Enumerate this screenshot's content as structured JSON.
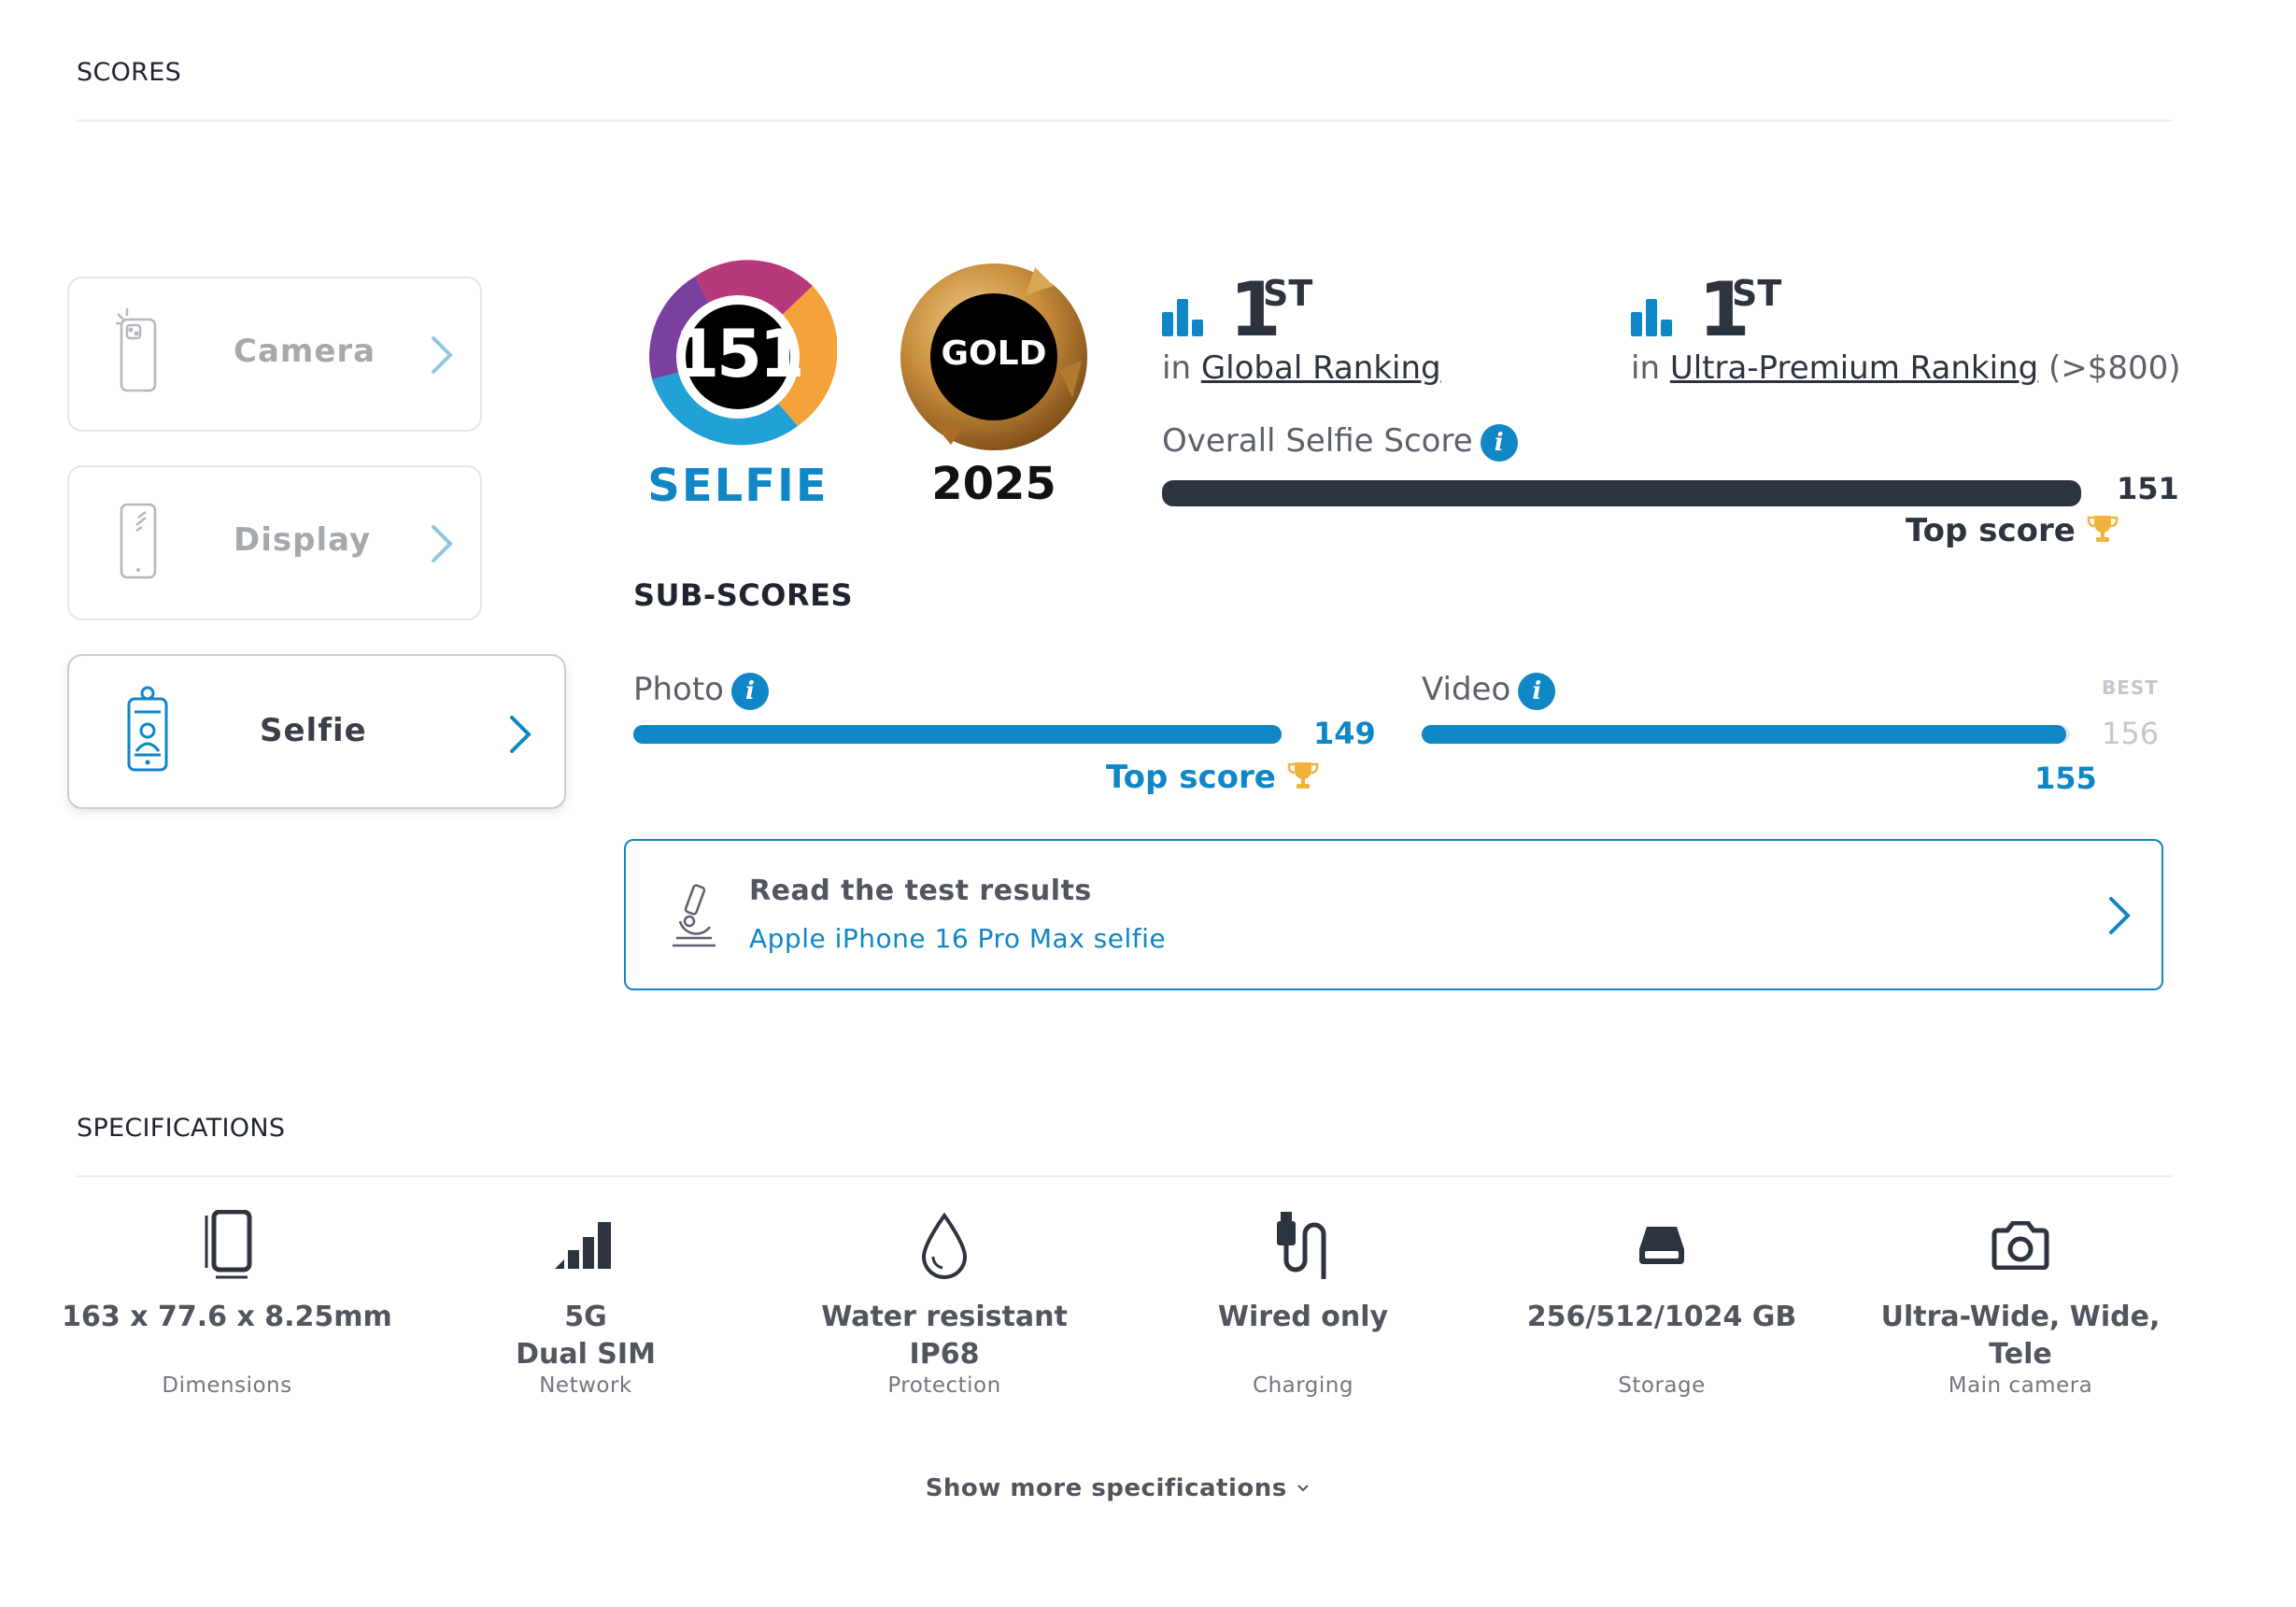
{
  "sections": {
    "scores": "SCORES",
    "specs": "SPECIFICATIONS",
    "sub_scores": "SUB-SCORES"
  },
  "categories": [
    {
      "label": "Camera",
      "active": false
    },
    {
      "label": "Display",
      "active": false
    },
    {
      "label": "Selfie",
      "active": true
    }
  ],
  "badges": {
    "score": "151",
    "score_label": "SELFIE",
    "award": "GOLD",
    "year": "2025"
  },
  "rankings": [
    {
      "rank": "1",
      "suffix": "ST",
      "prefix": "in ",
      "link": "Global Ranking",
      "suffix_text": ""
    },
    {
      "rank": "1",
      "suffix": "ST",
      "prefix": "in ",
      "link": "Ultra-Premium Ranking",
      "suffix_text": " (>$800)"
    }
  ],
  "overall": {
    "label": "Overall Selfie Score",
    "value": "151",
    "fill": 1.0,
    "top_score": "Top score"
  },
  "subscores": [
    {
      "label": "Photo",
      "value": "149",
      "fill": 1.0,
      "top_score": "Top score"
    },
    {
      "label": "Video",
      "value": "155",
      "fill": 0.994,
      "best_label": "BEST",
      "best_value": "156"
    }
  ],
  "test_link": {
    "title": "Read the test results",
    "subtitle": "Apple iPhone 16 Pro Max selfie"
  },
  "specs": [
    {
      "value": "163 x 77.6 x 8.25mm",
      "caption": "Dimensions",
      "icon": "dimensions-icon"
    },
    {
      "value": "5G\nDual SIM",
      "caption": "Network",
      "icon": "signal-icon"
    },
    {
      "value": "Water resistant\nIP68",
      "caption": "Protection",
      "icon": "water-drop-icon"
    },
    {
      "value": "Wired only",
      "caption": "Charging",
      "icon": "usb-cable-icon"
    },
    {
      "value": "256/512/1024 GB",
      "caption": "Storage",
      "icon": "storage-drive-icon"
    },
    {
      "value": "Ultra-Wide, Wide,\nTele",
      "caption": "Main camera",
      "icon": "camera-icon"
    }
  ],
  "show_more": "Show more specifications",
  "colors": {
    "accent": "#0f86c6",
    "dark_bar": "#2d3440",
    "gold_trophy": "#f2b33d",
    "muted_best": "#c4c8ce"
  }
}
